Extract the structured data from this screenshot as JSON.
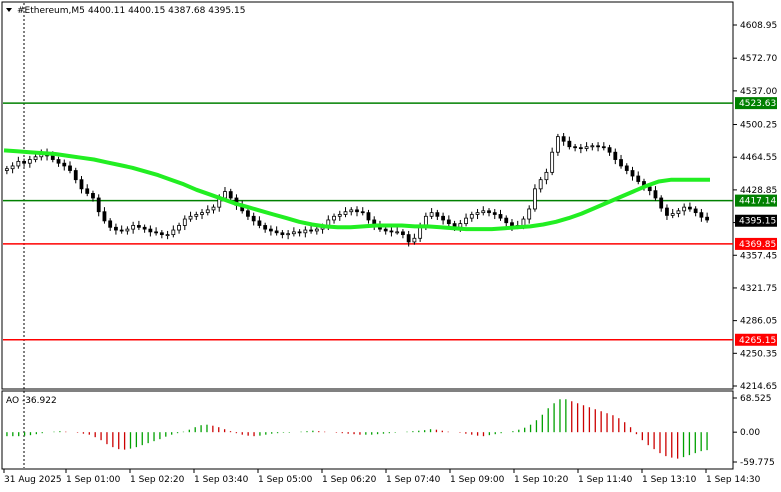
{
  "header": {
    "symbol": "#Ethereum,M5",
    "ohlc": "4400.11 4400.15 4387.68 4395.15"
  },
  "price_axis": {
    "ticks": [
      "4608.95",
      "4572.70",
      "4537.00",
      "4500.25",
      "4464.55",
      "4428.85",
      "4393.15",
      "4357.45",
      "4321.75",
      "4286.05",
      "4250.35",
      "4214.65"
    ],
    "tick_values": [
      4608.95,
      4572.7,
      4537.0,
      4500.25,
      4464.55,
      4428.85,
      4393.15,
      4357.45,
      4321.75,
      4286.05,
      4250.35,
      4214.65
    ]
  },
  "levels": [
    {
      "label": "4523.63",
      "value": 4523.63,
      "color": "#008000"
    },
    {
      "label": "4417.14",
      "value": 4417.14,
      "color": "#008000"
    },
    {
      "label": "4369.85",
      "value": 4369.85,
      "color": "#ff0000"
    },
    {
      "label": "4265.15",
      "value": 4265.15,
      "color": "#ff0000"
    }
  ],
  "current_price": {
    "label": "4395.15",
    "value": 4395.15
  },
  "ao_panel": {
    "title": "AO -36.922",
    "ticks": [
      "68.525",
      "0.00",
      "-59.775"
    ],
    "tick_values": [
      68.525,
      0,
      -59.775
    ]
  },
  "time_axis": {
    "labels": [
      "31 Aug 2025",
      "1 Sep 01:00",
      "1 Sep 02:20",
      "1 Sep 03:40",
      "1 Sep 05:00",
      "1 Sep 06:20",
      "1 Sep 07:40",
      "1 Sep 09:00",
      "1 Sep 10:20",
      "1 Sep 11:40",
      "1 Sep 13:10",
      "1 Sep 14:30"
    ]
  },
  "chart_data": {
    "type": "candlestick",
    "symbol": "#Ethereum",
    "timeframe": "M5",
    "close": [
      4452,
      4455,
      4460,
      4458,
      4462,
      4465,
      4470,
      4466,
      4462,
      4458,
      4455,
      4450,
      4440,
      4430,
      4425,
      4420,
      4405,
      4395,
      4388,
      4385,
      4384,
      4386,
      4390,
      4388,
      4386,
      4383,
      4382,
      4380,
      4380,
      4385,
      4390,
      4397,
      4400,
      4402,
      4404,
      4407,
      4410,
      4420,
      4427,
      4420,
      4412,
      4406,
      4400,
      4395,
      4390,
      4386,
      4384,
      4382,
      4380,
      4381,
      4383,
      4382,
      4385,
      4384,
      4386,
      4388,
      4396,
      4400,
      4402,
      4405,
      4407,
      4405,
      4404,
      4396,
      4390,
      4386,
      4384,
      4383,
      4383,
      4380,
      4372,
      4376,
      4390,
      4400,
      4404,
      4400,
      4396,
      4392,
      4388,
      4392,
      4398,
      4402,
      4404,
      4406,
      4404,
      4402,
      4398,
      4393,
      4389,
      4390,
      4397,
      4408,
      4430,
      4440,
      4448,
      4470,
      4487,
      4482,
      4476,
      4475,
      4474,
      4476,
      4477,
      4476,
      4475,
      4470,
      4462,
      4455,
      4450,
      4444,
      4438,
      4432,
      4428,
      4420,
      4409,
      4401,
      4403,
      4406,
      4410,
      4408,
      4404,
      4399,
      4396
    ],
    "sma_line": [
      4472,
      4471,
      4470,
      4469,
      4468,
      4466,
      4464,
      4462,
      4459,
      4456,
      4453,
      4449,
      4445,
      4440,
      4435,
      4429,
      4424,
      4419,
      4414,
      4410,
      4406,
      4402,
      4398,
      4394,
      4391,
      4389,
      4388,
      4388,
      4389,
      4390,
      4390,
      4390,
      4389,
      4389,
      4388,
      4387,
      4386,
      4386,
      4386,
      4387,
      4388,
      4389,
      4391,
      4394,
      4398,
      4403,
      4409,
      4415,
      4421,
      4427,
      4433,
      4438,
      4440,
      4440,
      4440,
      4440
    ],
    "ao": [
      -8,
      -8,
      -8,
      -7,
      -6,
      -4,
      -2,
      0,
      1,
      2,
      1,
      0,
      -1,
      -3,
      -5,
      -10,
      -16,
      -24,
      -30,
      -34,
      -35,
      -33,
      -30,
      -26,
      -22,
      -18,
      -14,
      -9,
      -5,
      -2,
      1,
      5,
      10,
      14,
      15,
      13,
      10,
      6,
      2,
      -2,
      -5,
      -7,
      -8,
      -7,
      -5,
      -3,
      -2,
      -1,
      -1,
      0,
      1,
      2,
      3,
      2,
      1,
      0,
      -1,
      -2,
      -3,
      -4,
      -5,
      -5,
      -5,
      -4,
      -3,
      -2,
      -1,
      0,
      1,
      2,
      3,
      4,
      6,
      5,
      3,
      1,
      0,
      -1,
      -3,
      -5,
      -7,
      -8,
      -6,
      -4,
      -2,
      0,
      2,
      5,
      9,
      15,
      24,
      35,
      48,
      58,
      66,
      66,
      62,
      58,
      54,
      50,
      46,
      42,
      38,
      34,
      28,
      20,
      10,
      -4,
      -16,
      -26,
      -34,
      -42,
      -48,
      -51,
      -53,
      -50,
      -46,
      -42,
      -38,
      -36
    ]
  },
  "colors": {
    "candle": "#000000",
    "sma": "#22ee22",
    "ao_up": "#00a000",
    "ao_down": "#cc0000",
    "price_label_bg": "#000000",
    "level_green": "#008000",
    "level_red": "#ff0000"
  }
}
